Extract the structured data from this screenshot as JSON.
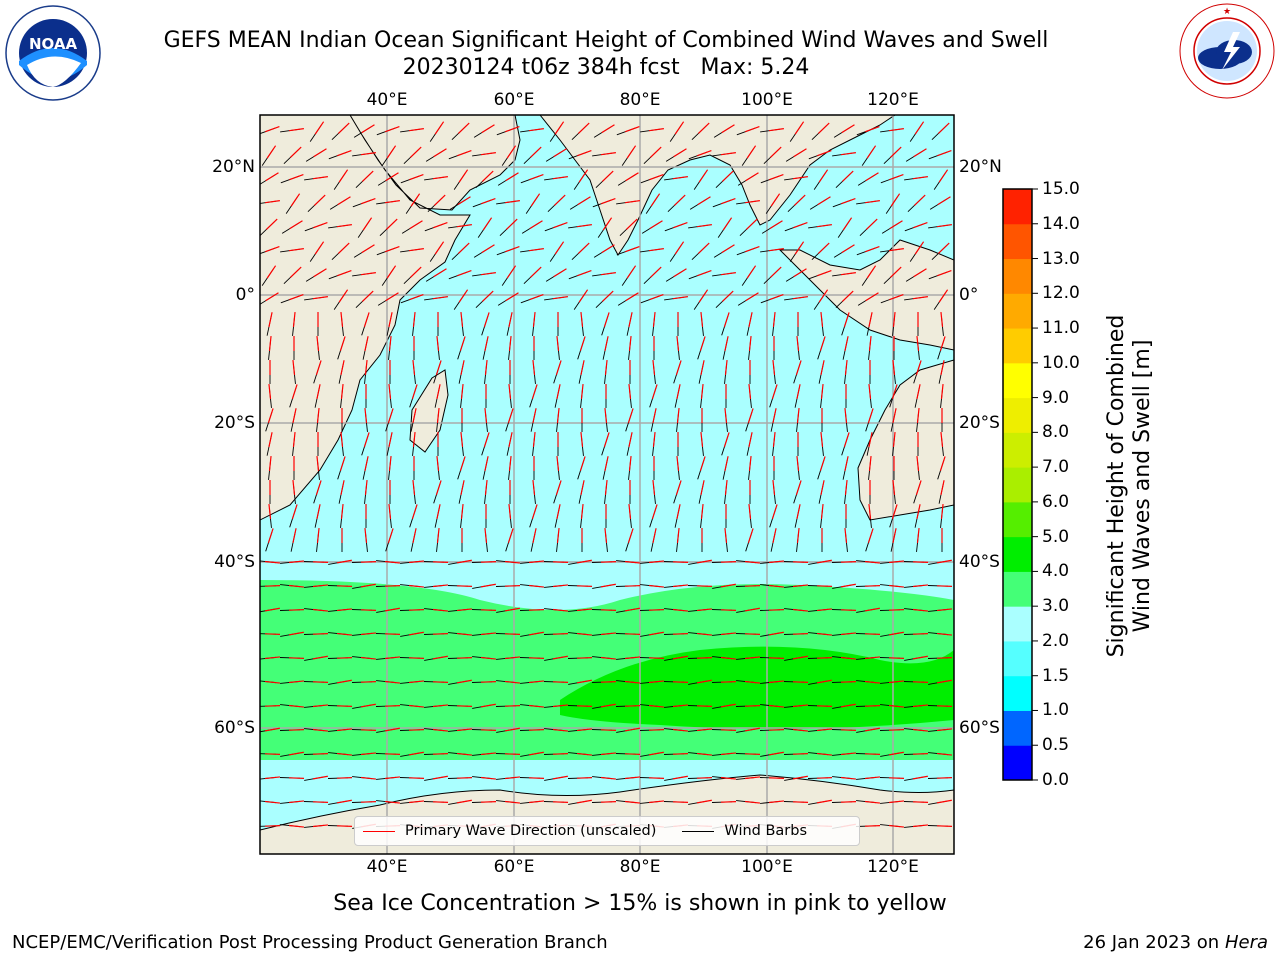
{
  "header": {
    "title": "GEFS MEAN Indian Ocean Significant Height of Combined Wind Waves and Swell",
    "subtitle": "20230124 t06z 384h fcst   Max: 5.24"
  },
  "logos": {
    "noaa": {
      "text": "NOAA",
      "ring_text": "NATIONAL OCEANIC AND ATMOSPHERIC ADMINISTRATION · U.S. DEPARTMENT OF COMMERCE"
    },
    "nws": {
      "ring_text": "NATIONAL WEATHER SERVICE"
    }
  },
  "map": {
    "lon_ticks": [
      "40°E",
      "60°E",
      "80°E",
      "100°E",
      "120°E"
    ],
    "lat_ticks": [
      "20°N",
      "0°",
      "20°S",
      "40°S",
      "60°S"
    ],
    "lon_range": [
      20,
      130
    ],
    "lat_range": [
      -72,
      28
    ],
    "legend": {
      "wave_direction": "Primary Wave Direction (unscaled)",
      "wind_barbs": "Wind Barbs",
      "wave_color": "#ff0000",
      "wind_color": "#000000"
    },
    "land_color": "#efecdc",
    "caption": "Sea Ice Concentration > 15% is shown in pink to yellow"
  },
  "colorbar": {
    "label_line1": "Significant Height of Combined",
    "label_line2": "Wind Waves and Swell [m]",
    "ticks": [
      "0.0",
      "0.5",
      "1.0",
      "1.5",
      "2.0",
      "3.0",
      "4.0",
      "5.0",
      "6.0",
      "7.0",
      "8.0",
      "9.0",
      "10.0",
      "11.0",
      "12.0",
      "13.0",
      "14.0",
      "15.0"
    ],
    "colors": [
      "#0000ff",
      "#0066ff",
      "#00ffff",
      "#55ffff",
      "#aaffff",
      "#44ff77",
      "#00ee00",
      "#55ee00",
      "#aaee00",
      "#ccee00",
      "#eeee00",
      "#ffff00",
      "#ffcc00",
      "#ffaa00",
      "#ff8800",
      "#ff5500",
      "#ff2200"
    ]
  },
  "footer": {
    "left": "NCEP/EMC/Verification Post Processing Product Generation Branch",
    "right_date": "26 Jan 2023 on",
    "right_host": "Hera"
  }
}
